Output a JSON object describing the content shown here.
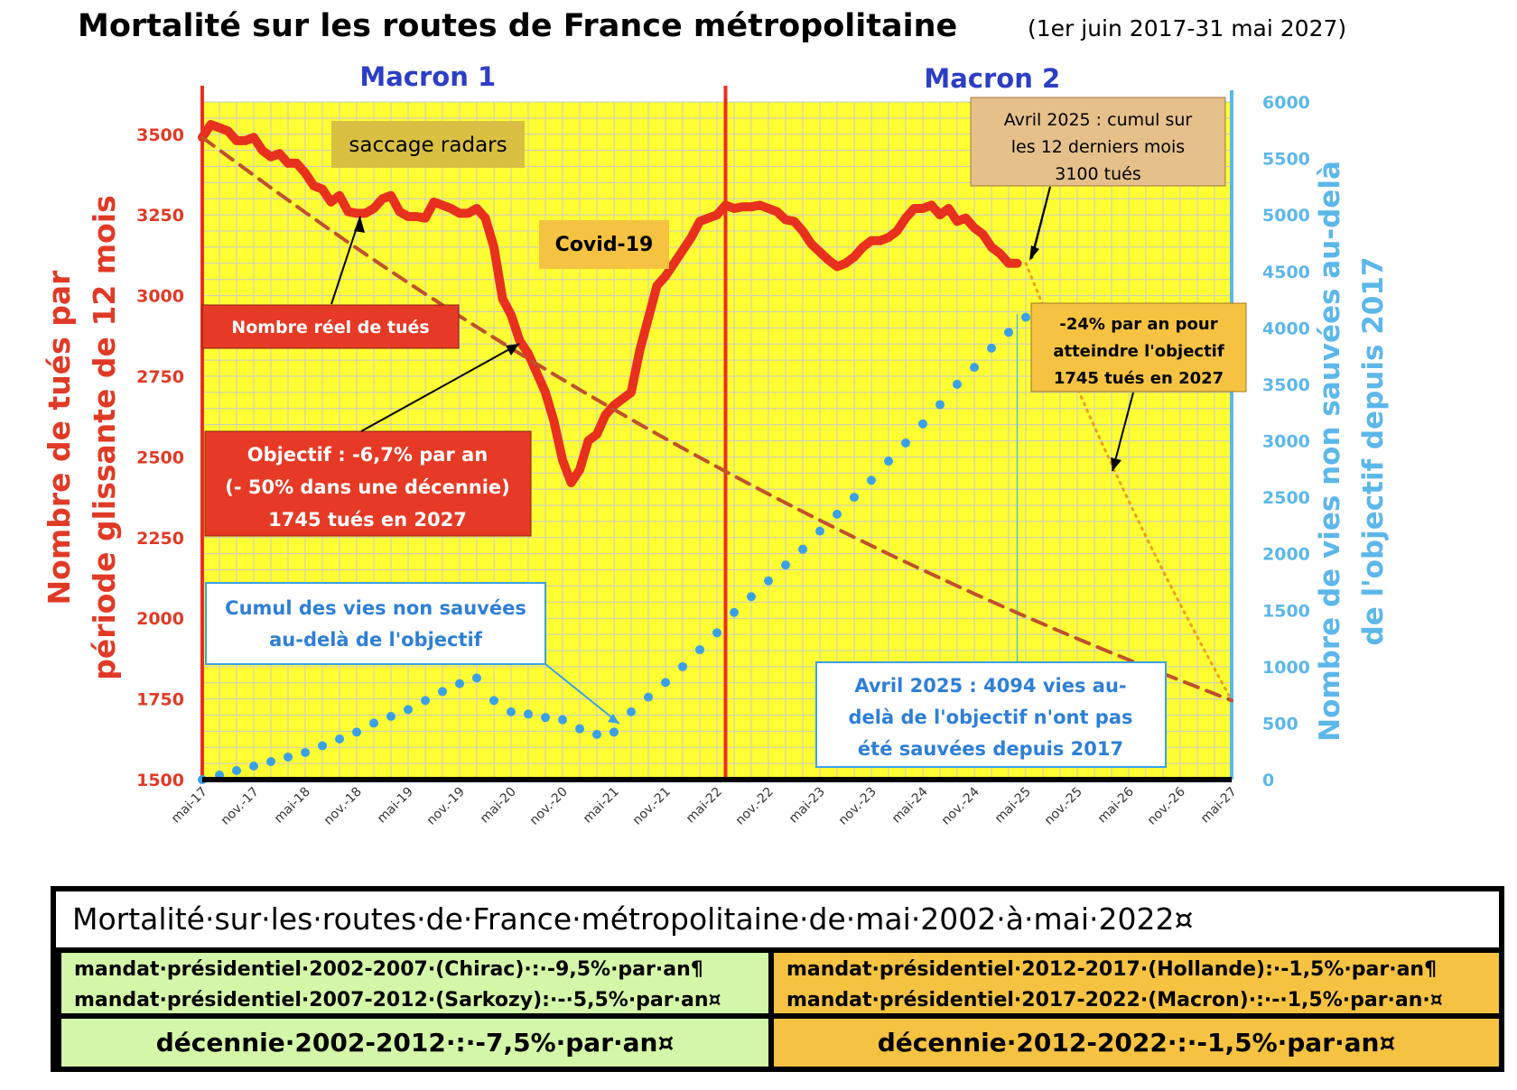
{
  "chart_data": {
    "type": "line",
    "title": "Mortalité sur les routes de France métropolitaine",
    "subtitle": "(1er juin 2017-31 mai 2027)",
    "ylabel_left": [
      "Nombre de tués par",
      "période glissante de 12 mois"
    ],
    "ylabel_right": [
      "Nombre de vies non sauvées  au-delà",
      "de l'objectif depuis 2017"
    ],
    "y_left_range": [
      1500,
      3600
    ],
    "y_left_ticks": [
      "1500",
      "1750",
      "2000",
      "2250",
      "2500",
      "2750",
      "3000",
      "3250",
      "3500"
    ],
    "y_right_range": [
      0,
      6000
    ],
    "y_right_ticks": [
      "0",
      "500",
      "1000",
      "1500",
      "2000",
      "2500",
      "3000",
      "3500",
      "4000",
      "4500",
      "5000",
      "5500",
      "6000"
    ],
    "x_ticks": [
      "mai-17",
      "nov.-17",
      "mai-18",
      "nov.-18",
      "mai-19",
      "nov.-19",
      "mai-20",
      "nov.-20",
      "mai-21",
      "nov.-21",
      "mai-22",
      "nov.-22",
      "mai-23",
      "nov.-23",
      "mai-24",
      "nov.-24",
      "mai-25",
      "nov.-25",
      "mai-26",
      "nov.-26",
      "mai-27"
    ],
    "grid": true,
    "periods": [
      {
        "label": "Macron 1",
        "start": 0,
        "end": 61
      },
      {
        "label": "Macron 2",
        "start": 61,
        "end": 120
      }
    ],
    "series": [
      {
        "name": "Nombre réel de tués",
        "axis": "left",
        "color": "#e8301e",
        "style": "solid",
        "x": [
          0,
          1,
          2,
          3,
          4,
          5,
          6,
          7,
          8,
          9,
          10,
          11,
          12,
          13,
          14,
          15,
          16,
          17,
          18,
          19,
          20,
          21,
          22,
          23,
          24,
          25,
          26,
          27,
          28,
          29,
          30,
          31,
          32,
          33,
          34,
          35,
          36,
          37,
          38,
          39,
          40,
          41,
          42,
          43,
          44,
          45,
          46,
          47,
          48,
          49,
          50,
          51,
          52,
          53,
          54,
          55,
          56,
          57,
          58,
          59,
          60,
          61,
          62,
          63,
          64,
          65,
          66,
          67,
          68,
          69,
          70,
          71,
          72,
          73,
          74,
          75,
          76,
          77,
          78,
          79,
          80,
          81,
          82,
          83,
          84,
          85,
          86,
          87,
          88,
          89,
          90,
          91,
          92,
          93,
          94,
          95
        ],
        "values": [
          3490,
          3530,
          3520,
          3510,
          3480,
          3480,
          3490,
          3450,
          3430,
          3440,
          3410,
          3410,
          3380,
          3340,
          3330,
          3290,
          3310,
          3260,
          3255,
          3255,
          3270,
          3300,
          3310,
          3260,
          3245,
          3245,
          3240,
          3290,
          3280,
          3270,
          3255,
          3255,
          3270,
          3240,
          3150,
          2990,
          2940,
          2860,
          2820,
          2760,
          2700,
          2610,
          2490,
          2420,
          2460,
          2550,
          2570,
          2630,
          2660,
          2680,
          2700,
          2830,
          2930,
          3030,
          3060,
          3100,
          3140,
          3180,
          3230,
          3240,
          3250,
          3280,
          3270,
          3275,
          3275,
          3280,
          3270,
          3260,
          3235,
          3230,
          3200,
          3160,
          3135,
          3110,
          3090,
          3100,
          3120,
          3150,
          3170,
          3170,
          3180,
          3200,
          3240,
          3270,
          3270,
          3280,
          3250,
          3270,
          3230,
          3240,
          3210,
          3190,
          3150,
          3130,
          3100,
          3100
        ]
      },
      {
        "name": "Objectif : -6,7% par an",
        "axis": "left",
        "color": "#c0502a",
        "style": "dashed",
        "x": [
          0,
          12,
          24,
          36,
          48,
          60,
          72,
          84,
          96,
          108,
          120
        ],
        "values": [
          3490,
          3256,
          3038,
          2835,
          2645,
          2468,
          2302,
          2148,
          2004,
          1870,
          1745
        ]
      },
      {
        "name": "-24% par an pour atteindre l'objectif",
        "axis": "left",
        "color": "#e8a020",
        "style": "dotted",
        "x": [
          96,
          102,
          108,
          114,
          120
        ],
        "values": [
          3100,
          2710,
          2360,
          2040,
          1745
        ]
      },
      {
        "name": "Cumul des vies non sauvées au-delà de l'objectif",
        "axis": "right",
        "color": "#3aa0e8",
        "style": "dots",
        "x": [
          0,
          2,
          4,
          6,
          8,
          10,
          12,
          14,
          16,
          18,
          20,
          22,
          24,
          26,
          28,
          30,
          32,
          34,
          36,
          38,
          40,
          42,
          44,
          46,
          48,
          50,
          52,
          54,
          56,
          58,
          60,
          62,
          64,
          66,
          68,
          70,
          72,
          74,
          76,
          78,
          80,
          82,
          84,
          86,
          88,
          90,
          92,
          94,
          96
        ],
        "values": [
          0,
          40,
          80,
          120,
          160,
          200,
          240,
          300,
          360,
          420,
          500,
          560,
          620,
          700,
          780,
          850,
          900,
          700,
          600,
          580,
          550,
          530,
          450,
          400,
          420,
          600,
          730,
          860,
          1000,
          1150,
          1300,
          1480,
          1620,
          1760,
          1900,
          2040,
          2200,
          2350,
          2500,
          2650,
          2820,
          2980,
          3150,
          3320,
          3500,
          3650,
          3820,
          3960,
          4094
        ]
      }
    ],
    "annotations": {
      "saccage": "saccage radars",
      "covid": "Covid-19",
      "nombre_reel": "Nombre réel de tués",
      "objectif_lines": [
        "Objectif : -6,7% par an",
        "(- 50% dans une décennie)",
        "1745 tués en 2027"
      ],
      "cumul_lines": [
        "Cumul des vies non sauvées",
        "au-delà de l'objectif"
      ],
      "avril_top_lines": [
        "Avril 2025 : cumul sur",
        "les 12 derniers mois",
        "3100 tués"
      ],
      "moins24_lines": [
        "-24% par an pour",
        "atteindre l'objectif",
        "1745 tués en 2027"
      ],
      "avril_bottom_lines": [
        "Avril 2025 : 4094 vies au-",
        "delà de l'objectif n'ont pas",
        "été sauvées depuis 2017"
      ]
    }
  },
  "table": {
    "title": "Mortalité·sur·les·routes·de·France·métropolitaine·de·mai·2002·à·mai·2022¤",
    "left_lines": [
      "mandat·présidentiel·2002-2007·(Chirac)·:·-9,5%·par·an¶",
      "mandat·présidentiel·2007-2012·(Sarkozy):·-·5,5%·par·an¤"
    ],
    "right_lines": [
      "mandat·présidentiel·2012-2017·(Hollande):·-1,5%·par·an¶",
      "mandat·présidentiel·2017-2022·(Macron)·:·-·1,5%·par·an·¤"
    ],
    "left_decade": "décennie·2002-2012·:·-7,5%·par·an¤",
    "right_decade": "décennie·2012-2022·:·-1,5%·par·an¤"
  }
}
